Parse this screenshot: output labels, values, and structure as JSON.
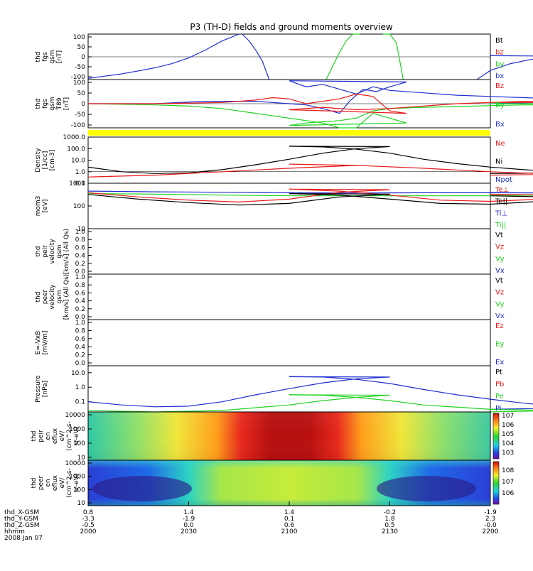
{
  "title": "P3 (TH-D) fields and ground moments overview",
  "colors": {
    "blue": "#1f2ecf",
    "red": "#e81a1a",
    "green": "#21d321",
    "black": "#000000",
    "yellow": "#ffff00"
  },
  "x_axis": {
    "rows": [
      {
        "label": "thd_X-GSM",
        "values": [
          "0.8",
          "1.4",
          "1.4",
          "-0.2",
          "-1.9"
        ]
      },
      {
        "label": "thd_Y-GSM",
        "values": [
          "-3.3",
          "-1.9",
          "0.1",
          "1.8",
          "2.3"
        ]
      },
      {
        "label": "thd_Z-GSM",
        "values": [
          "-0.5",
          "0.0",
          "0.6",
          "0.5",
          "-0.0"
        ]
      },
      {
        "label": "hhmm",
        "values": [
          "2000",
          "2030",
          "2100",
          "2130",
          "2200"
        ]
      }
    ],
    "date": "2008 Jan 07"
  },
  "chart_data": [
    {
      "type": "line",
      "ylabel_lines": [
        "thd",
        "fgs",
        "gsm",
        "[nT]"
      ],
      "yticks": [
        "100",
        "50",
        "0",
        "-50",
        "-100"
      ],
      "ylim": [
        -100,
        100
      ],
      "legend": [
        {
          "text": "Bt",
          "color": "#000000"
        },
        {
          "text": "bz",
          "color": "#e81a1a"
        },
        {
          "text": "by",
          "color": "#21d321"
        },
        {
          "text": "bx",
          "color": "#1f2ecf"
        }
      ],
      "series": [
        {
          "name": "bx",
          "color": "#1f2ecf",
          "x": [
            2000,
            2005,
            2010,
            2015,
            2020,
            2025,
            2030,
            2035,
            2040,
            2045
          ],
          "y": [
            -95,
            -85,
            -75,
            -62,
            -48,
            -30,
            -5,
            30,
            70,
            105
          ]
        },
        {
          "name": "bx",
          "color": "#1f2ecf",
          "x": [
            2046,
            2048,
            2050,
            2052,
            2054
          ],
          "y": [
            105,
            70,
            30,
            -20,
            -100
          ]
        },
        {
          "name": "by",
          "color": "#21d321",
          "x": [
            2071,
            2073,
            2075,
            2077,
            2079,
            2081
          ],
          "y": [
            -100,
            -40,
            20,
            70,
            100,
            110
          ]
        },
        {
          "name": "by",
          "color": "#21d321",
          "x": [
            2088,
            2090,
            2092,
            2094
          ],
          "y": [
            110,
            100,
            60,
            -100
          ]
        },
        {
          "name": "bx",
          "color": "#1f2ecf",
          "x": [
            2156,
            2160,
            2166,
            2172,
            2180,
            2190,
            2200
          ],
          "y": [
            -100,
            -60,
            -30,
            -12,
            -3,
            2,
            5
          ]
        }
      ]
    },
    {
      "type": "line",
      "ylabel_lines": [
        "thd",
        "fgs",
        "gsm",
        "T89",
        "[nT]"
      ],
      "yticks": [
        "100",
        "50",
        "0",
        "-50",
        "-100"
      ],
      "ylim": [
        -100,
        100
      ],
      "legend": [
        {
          "text": "Bz",
          "color": "#e81a1a"
        },
        {
          "text": "By",
          "color": "#21d321"
        },
        {
          "text": "Bx",
          "color": "#1f2ecf"
        }
      ],
      "series": [
        {
          "name": "Bx",
          "color": "#1f2ecf",
          "x": [
            2000,
            2020,
            2035,
            2050,
            2060,
            2065,
            2070,
            2075,
            2078,
            2082,
            2086,
            2090,
            2095,
            2100,
            2105,
            2110,
            2115,
            2120,
            2125,
            2130,
            2140,
            2150,
            2160,
            2170,
            2180,
            2190,
            2200
          ],
          "y": [
            0,
            0,
            10,
            10,
            0,
            -5,
            -20,
            -40,
            10,
            60,
            50,
            70,
            90,
            95,
            70,
            80,
            60,
            40,
            70,
            55,
            45,
            35,
            30,
            25,
            20,
            10,
            0
          ]
        },
        {
          "name": "By",
          "color": "#21d321",
          "x": [
            2000,
            2020,
            2030,
            2040,
            2050,
            2060,
            2065,
            2070,
            2075,
            2080,
            2085,
            2090,
            2095,
            2100,
            2105,
            2110,
            2115,
            2120,
            2125,
            2130,
            2140,
            2150,
            2160,
            2170,
            2180,
            2190,
            2200
          ],
          "y": [
            0,
            -5,
            -10,
            -20,
            -40,
            -60,
            -70,
            -80,
            -100,
            -100,
            -40,
            -60,
            -80,
            -90,
            -80,
            -75,
            -70,
            -60,
            -30,
            -20,
            -15,
            -12,
            -8,
            -5,
            -5,
            0,
            0
          ]
        },
        {
          "name": "Bz",
          "color": "#e81a1a",
          "x": [
            2000,
            2020,
            2040,
            2050,
            2055,
            2060,
            2065,
            2070,
            2075,
            2080,
            2085,
            2090,
            2095,
            2100,
            2110,
            2120,
            2130,
            2140,
            2150,
            2160,
            2170,
            2180,
            2190,
            2200
          ],
          "y": [
            0,
            0,
            5,
            15,
            25,
            20,
            0,
            10,
            20,
            40,
            30,
            -30,
            -40,
            -25,
            -15,
            -25,
            -20,
            -10,
            0,
            5,
            10,
            10,
            5,
            5
          ]
        }
      ]
    },
    {
      "type": "line",
      "ylabel_lines": [
        "Density",
        "[1/cc]",
        "[cm-3]"
      ],
      "yticks": [
        "1000.0",
        "100.0",
        "10.0",
        "1.0",
        "0.1"
      ],
      "ylim": [
        0.1,
        1000
      ],
      "log": true,
      "legend": [
        {
          "text": "Ne",
          "color": "#e81a1a"
        },
        {
          "text": "Ni",
          "color": "#000000"
        },
        {
          "text": "Npot",
          "color": "#1f2ecf"
        }
      ],
      "series": [
        {
          "name": "Ni",
          "color": "#000000",
          "x": [
            2000,
            2010,
            2020,
            2030,
            2040,
            2050,
            2060,
            2070,
            2080,
            2090,
            2100,
            2110,
            2120,
            2130,
            2140,
            2150,
            2160,
            2170,
            2180,
            2190,
            2200
          ],
          "y": [
            2.5,
            1.0,
            0.7,
            0.8,
            1.5,
            4,
            12,
            40,
            100,
            150,
            160,
            140,
            90,
            40,
            12,
            5,
            2.5,
            1.5,
            1.0,
            0.8,
            0.7
          ]
        },
        {
          "name": "Ne",
          "color": "#e81a1a",
          "x": [
            2000,
            2020,
            2040,
            2060,
            2080,
            2100,
            2120,
            2140,
            2160,
            2180,
            2200
          ],
          "y": [
            0.35,
            0.5,
            1.0,
            2.0,
            3.5,
            4.5,
            3.5,
            2.0,
            1.0,
            0.6,
            0.5
          ]
        }
      ]
    },
    {
      "type": "line",
      "ylabel_lines": [
        "mom3",
        "[eV]"
      ],
      "yticks": [
        "1000",
        "100",
        "10"
      ],
      "ylim": [
        10,
        1000
      ],
      "log": true,
      "legend": [
        {
          "text": "Te⊥",
          "color": "#e81a1a"
        },
        {
          "text": "Te||",
          "color": "#000000"
        },
        {
          "text": "Ti⊥",
          "color": "#1f2ecf"
        },
        {
          "text": "Ti||",
          "color": "#21d321"
        }
      ],
      "series": [
        {
          "name": "Ti⊥",
          "color": "#1f2ecf",
          "x": [
            2000,
            2020,
            2040,
            2060,
            2080,
            2100,
            2120,
            2140,
            2160,
            2180,
            2200
          ],
          "y": [
            450,
            420,
            400,
            380,
            370,
            370,
            370,
            380,
            380,
            370,
            390
          ]
        },
        {
          "name": "Ti||",
          "color": "#21d321",
          "x": [
            2000,
            2020,
            2040,
            2060,
            2080,
            2100,
            2120,
            2140,
            2160,
            2180,
            2200
          ],
          "y": [
            350,
            330,
            300,
            280,
            280,
            280,
            280,
            280,
            280,
            300,
            320
          ]
        },
        {
          "name": "Te⊥",
          "color": "#e81a1a",
          "x": [
            2000,
            2015,
            2030,
            2045,
            2060,
            2075,
            2090,
            2100,
            2115,
            2130,
            2145,
            2160,
            2175,
            2190,
            2200
          ],
          "y": [
            380,
            250,
            180,
            150,
            200,
            400,
            520,
            550,
            450,
            300,
            180,
            160,
            200,
            280,
            330
          ]
        },
        {
          "name": "Te||",
          "color": "#000000",
          "x": [
            2000,
            2015,
            2030,
            2045,
            2060,
            2075,
            2090,
            2100,
            2115,
            2130,
            2145,
            2160,
            2175,
            2190,
            2200
          ],
          "y": [
            320,
            200,
            140,
            110,
            130,
            250,
            330,
            350,
            300,
            200,
            130,
            120,
            160,
            230,
            280
          ]
        }
      ]
    },
    {
      "type": "line",
      "ylabel_lines": [
        "thd",
        "peir",
        "velocity",
        "gsm",
        "[km/s] (All Qs)"
      ],
      "yticks": [
        "1.0",
        "0.8",
        "0.6",
        "0.4",
        "0.2",
        "0.0"
      ],
      "ylim": [
        0,
        1
      ],
      "legend": [
        {
          "text": "Vt",
          "color": "#000000"
        },
        {
          "text": "Vz",
          "color": "#e81a1a"
        },
        {
          "text": "Vy",
          "color": "#21d321"
        },
        {
          "text": "Vx",
          "color": "#1f2ecf"
        }
      ],
      "series": []
    },
    {
      "type": "line",
      "ylabel_lines": [
        "thd",
        "peer",
        "velocity",
        "gsm",
        "[km/s] (All Qs)"
      ],
      "yticks": [
        "1.0",
        "0.8",
        "0.6",
        "0.4",
        "0.2",
        "0.0"
      ],
      "ylim": [
        0,
        1
      ],
      "legend": [
        {
          "text": "Vt",
          "color": "#000000"
        },
        {
          "text": "Vz",
          "color": "#e81a1a"
        },
        {
          "text": "Vy",
          "color": "#21d321"
        },
        {
          "text": "Vx",
          "color": "#1f2ecf"
        }
      ],
      "series": []
    },
    {
      "type": "line",
      "ylabel_lines": [
        "E=-VxB",
        "[mV/m]"
      ],
      "yticks": [
        "1.0",
        "0.8",
        "0.6",
        "0.4",
        "0.2",
        "0.0"
      ],
      "ylim": [
        0,
        1
      ],
      "legend": [
        {
          "text": "Ez",
          "color": "#e81a1a"
        },
        {
          "text": "Ey",
          "color": "#21d321"
        },
        {
          "text": "Ex",
          "color": "#1f2ecf"
        }
      ],
      "series": []
    },
    {
      "type": "line",
      "ylabel_lines": [
        "Pressure",
        "[nPa]"
      ],
      "yticks": [
        "10.0",
        "1.0",
        "0.1"
      ],
      "ylim": [
        0.02,
        30
      ],
      "log": true,
      "legend": [
        {
          "text": "Pt",
          "color": "#000000"
        },
        {
          "text": "Pb",
          "color": "#e81a1a"
        },
        {
          "text": "Pe",
          "color": "#21d321"
        },
        {
          "text": "Pi",
          "color": "#1f2ecf"
        }
      ],
      "series": [
        {
          "name": "Pi",
          "color": "#1f2ecf",
          "x": [
            2000,
            2010,
            2020,
            2030,
            2040,
            2050,
            2060,
            2070,
            2080,
            2090,
            2100,
            2110,
            2120,
            2130,
            2140,
            2150,
            2160,
            2170,
            2180,
            2190,
            2200
          ],
          "y": [
            0.1,
            0.06,
            0.045,
            0.05,
            0.1,
            0.3,
            0.8,
            2.0,
            3.8,
            5.0,
            5.3,
            5.0,
            3.5,
            1.8,
            0.7,
            0.3,
            0.15,
            0.08,
            0.05,
            0.04,
            0.03
          ]
        },
        {
          "name": "Pe",
          "color": "#21d321",
          "x": [
            2000,
            2020,
            2040,
            2060,
            2070,
            2080,
            2090,
            2100,
            2110,
            2120,
            2130,
            2140,
            2160,
            2180,
            2200
          ],
          "y": [
            0.025,
            0.02,
            0.025,
            0.06,
            0.12,
            0.2,
            0.28,
            0.3,
            0.28,
            0.2,
            0.12,
            0.06,
            0.03,
            0.025,
            0.02
          ]
        }
      ]
    },
    {
      "type": "heatmap",
      "ylabel_lines": [
        "thd",
        "peir",
        "en",
        "eflux",
        "eV/",
        "(cm^2-s-",
        "sr-eV)"
      ],
      "yticks": [
        "10000",
        "1000",
        "100",
        "10"
      ],
      "colorbar_ticks": [
        "10^7",
        "10^6",
        "10^5",
        "10^4",
        "10^3"
      ]
    },
    {
      "type": "heatmap",
      "ylabel_lines": [
        "thd",
        "peer",
        "en",
        "eflux",
        "eV/",
        "(cm^2-s-",
        "sr-eV)"
      ],
      "yticks": [
        "10000",
        "1000",
        "100",
        "10"
      ],
      "colorbar_ticks": [
        "10^8",
        "10^7",
        "10^6"
      ]
    }
  ]
}
